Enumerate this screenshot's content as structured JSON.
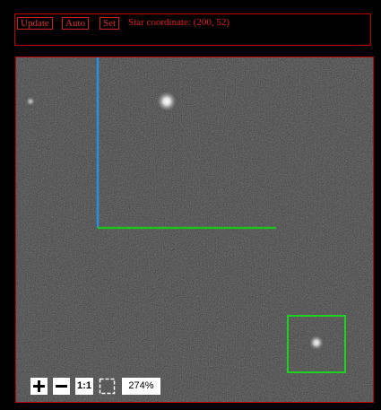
{
  "toolbar": {
    "buttons": [
      "Update",
      "Auto",
      "Set"
    ],
    "status": "Star coordinate: (200, 52)"
  },
  "viewer": {
    "reset_zoom": "1:1",
    "zoom": "274%"
  }
}
